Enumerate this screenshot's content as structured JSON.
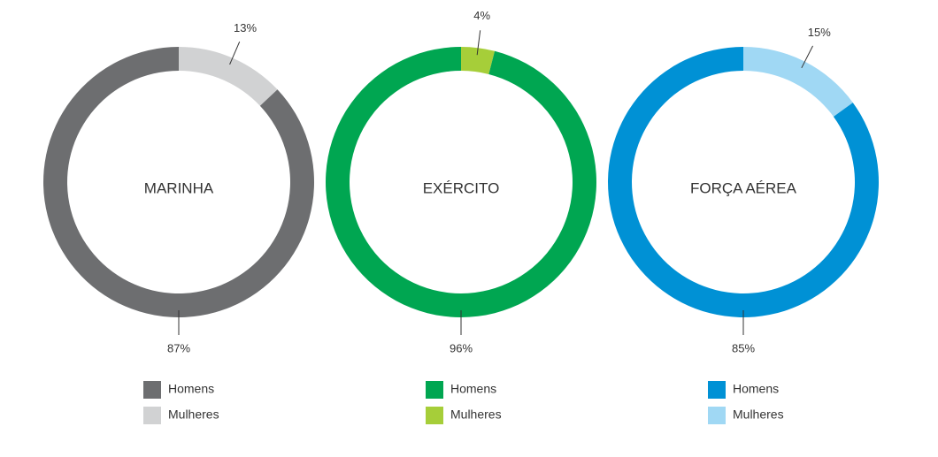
{
  "chart_data": [
    {
      "type": "pie",
      "title": "MARINHA",
      "categories": [
        "Homens",
        "Mulheres"
      ],
      "values": [
        87,
        13
      ],
      "value_labels": [
        "87%",
        "13%"
      ],
      "colors": [
        "#6d6e70",
        "#d1d2d3"
      ]
    },
    {
      "type": "pie",
      "title": "EXÉRCITO",
      "categories": [
        "Homens",
        "Mulheres"
      ],
      "values": [
        96,
        4
      ],
      "value_labels": [
        "96%",
        "4%"
      ],
      "colors": [
        "#00a651",
        "#a6ce39"
      ]
    },
    {
      "type": "pie",
      "title": "FORÇA AÉREA",
      "categories": [
        "Homens",
        "Mulheres"
      ],
      "values": [
        85,
        15
      ],
      "value_labels": [
        "85%",
        "15%"
      ],
      "colors": [
        "#0091d5",
        "#a0d8f4"
      ]
    }
  ]
}
